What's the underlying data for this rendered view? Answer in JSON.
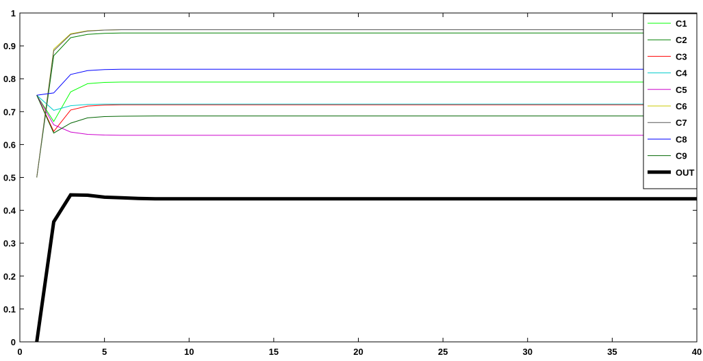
{
  "chart_data": {
    "type": "line",
    "title": "",
    "xlabel": "",
    "ylabel": "",
    "xlim": [
      0,
      40
    ],
    "ylim": [
      0,
      1
    ],
    "grid": false,
    "legend_position": "top-right",
    "x_ticks": [
      0,
      5,
      10,
      15,
      20,
      25,
      30,
      35,
      40
    ],
    "y_ticks": [
      0,
      0.1,
      0.2,
      0.3,
      0.4,
      0.5,
      0.6,
      0.7,
      0.8,
      0.9,
      1
    ],
    "x_tick_labels": [
      "0",
      "5",
      "10",
      "15",
      "20",
      "25",
      "30",
      "35",
      "40"
    ],
    "y_tick_labels": [
      "0",
      "0.1",
      "0.2",
      "0.3",
      "0.4",
      "0.5",
      "0.6",
      "0.7",
      "0.8",
      "0.9",
      "1"
    ],
    "series": [
      {
        "name": "C1",
        "color": "#00ff00",
        "width": 1,
        "x": [
          1,
          2,
          3,
          4,
          5,
          6,
          8,
          10,
          40
        ],
        "y": [
          0.75,
          0.67,
          0.76,
          0.785,
          0.789,
          0.79,
          0.79,
          0.79,
          0.79
        ]
      },
      {
        "name": "C2",
        "color": "#008000",
        "width": 1,
        "x": [
          1,
          2,
          3,
          4,
          5,
          6,
          8,
          10,
          40
        ],
        "y": [
          0.5,
          0.87,
          0.925,
          0.935,
          0.938,
          0.939,
          0.939,
          0.939,
          0.939
        ]
      },
      {
        "name": "C3",
        "color": "#ff0000",
        "width": 1,
        "x": [
          1,
          2,
          3,
          4,
          5,
          6,
          8,
          10,
          40
        ],
        "y": [
          0.75,
          0.64,
          0.705,
          0.717,
          0.72,
          0.721,
          0.721,
          0.721,
          0.721
        ]
      },
      {
        "name": "C4",
        "color": "#00cccc",
        "width": 1,
        "x": [
          1,
          2,
          3,
          4,
          5,
          6,
          8,
          10,
          40
        ],
        "y": [
          0.75,
          0.704,
          0.718,
          0.722,
          0.723,
          0.723,
          0.723,
          0.723,
          0.723
        ]
      },
      {
        "name": "C5",
        "color": "#cc00cc",
        "width": 1,
        "x": [
          1,
          2,
          3,
          4,
          5,
          6,
          8,
          10,
          40
        ],
        "y": [
          0.75,
          0.66,
          0.638,
          0.631,
          0.629,
          0.628,
          0.628,
          0.628,
          0.628
        ]
      },
      {
        "name": "C6",
        "color": "#c8c800",
        "width": 1,
        "x": [
          1,
          2,
          3,
          4,
          5,
          6,
          8,
          10,
          40
        ],
        "y": [
          0.5,
          0.89,
          0.937,
          0.946,
          0.948,
          0.949,
          0.949,
          0.949,
          0.949
        ]
      },
      {
        "name": "C7",
        "color": "#555555",
        "width": 1,
        "x": [
          1,
          2,
          3,
          4,
          5,
          6,
          8,
          10,
          40
        ],
        "y": [
          0.5,
          0.885,
          0.935,
          0.945,
          0.948,
          0.949,
          0.949,
          0.949,
          0.949
        ]
      },
      {
        "name": "C8",
        "color": "#0000ff",
        "width": 1,
        "x": [
          1,
          2,
          3,
          4,
          5,
          6,
          8,
          10,
          40
        ],
        "y": [
          0.75,
          0.757,
          0.813,
          0.825,
          0.828,
          0.829,
          0.829,
          0.829,
          0.829
        ]
      },
      {
        "name": "C9",
        "color": "#006400",
        "width": 1,
        "x": [
          1,
          2,
          3,
          4,
          5,
          6,
          8,
          10,
          40
        ],
        "y": [
          0.75,
          0.635,
          0.665,
          0.681,
          0.685,
          0.686,
          0.687,
          0.687,
          0.687
        ]
      },
      {
        "name": "OUT",
        "color": "#000000",
        "width": 5,
        "x": [
          1,
          2,
          3,
          4,
          5,
          6,
          7,
          8,
          10,
          40
        ],
        "y": [
          0.0,
          0.365,
          0.447,
          0.446,
          0.44,
          0.438,
          0.436,
          0.435,
          0.435,
          0.435
        ]
      }
    ]
  }
}
